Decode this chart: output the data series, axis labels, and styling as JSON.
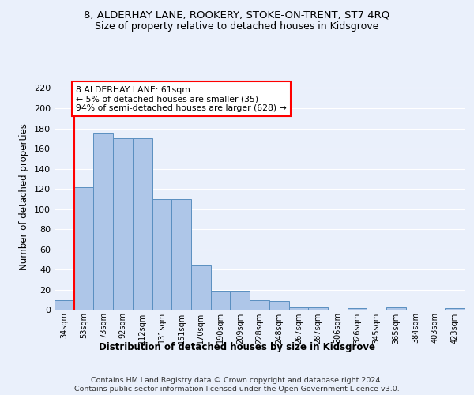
{
  "title1": "8, ALDERHAY LANE, ROOKERY, STOKE-ON-TRENT, ST7 4RQ",
  "title2": "Size of property relative to detached houses in Kidsgrove",
  "xlabel": "Distribution of detached houses by size in Kidsgrove",
  "ylabel": "Number of detached properties",
  "bin_labels": [
    "34sqm",
    "53sqm",
    "73sqm",
    "92sqm",
    "112sqm",
    "131sqm",
    "151sqm",
    "170sqm",
    "190sqm",
    "209sqm",
    "228sqm",
    "248sqm",
    "267sqm",
    "287sqm",
    "306sqm",
    "326sqm",
    "345sqm",
    "365sqm",
    "384sqm",
    "403sqm",
    "423sqm"
  ],
  "bar_heights": [
    10,
    122,
    176,
    170,
    170,
    110,
    110,
    44,
    19,
    19,
    10,
    9,
    3,
    3,
    0,
    2,
    0,
    3,
    0,
    0,
    2
  ],
  "bar_color": "#aec6e8",
  "bar_edge_color": "#5a8fc0",
  "vline_x": 1,
  "vline_color": "red",
  "annotation_text": "8 ALDERHAY LANE: 61sqm\n← 5% of detached houses are smaller (35)\n94% of semi-detached houses are larger (628) →",
  "annotation_box_color": "white",
  "annotation_box_edge": "red",
  "ylim": [
    0,
    225
  ],
  "yticks": [
    0,
    20,
    40,
    60,
    80,
    100,
    120,
    140,
    160,
    180,
    200,
    220
  ],
  "footer": "Contains HM Land Registry data © Crown copyright and database right 2024.\nContains public sector information licensed under the Open Government Licence v3.0.",
  "bg_color": "#eaf0fb",
  "plot_bg_color": "#eaf0fb"
}
